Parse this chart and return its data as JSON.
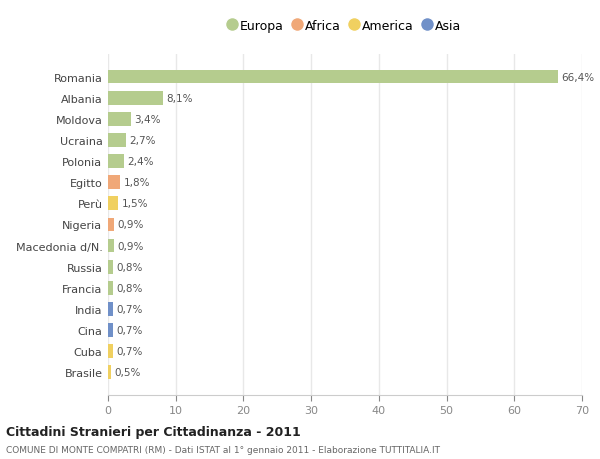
{
  "categories": [
    "Romania",
    "Albania",
    "Moldova",
    "Ucraina",
    "Polonia",
    "Egitto",
    "Perù",
    "Nigeria",
    "Macedonia d/N.",
    "Russia",
    "Francia",
    "India",
    "Cina",
    "Cuba",
    "Brasile"
  ],
  "values": [
    66.4,
    8.1,
    3.4,
    2.7,
    2.4,
    1.8,
    1.5,
    0.9,
    0.9,
    0.8,
    0.8,
    0.7,
    0.7,
    0.7,
    0.5
  ],
  "labels": [
    "66,4%",
    "8,1%",
    "3,4%",
    "2,7%",
    "2,4%",
    "1,8%",
    "1,5%",
    "0,9%",
    "0,9%",
    "0,8%",
    "0,8%",
    "0,7%",
    "0,7%",
    "0,7%",
    "0,5%"
  ],
  "continents": [
    "Europa",
    "Europa",
    "Europa",
    "Europa",
    "Europa",
    "Africa",
    "America",
    "Africa",
    "Europa",
    "Europa",
    "Europa",
    "Asia",
    "Asia",
    "America",
    "America"
  ],
  "colors": {
    "Europa": "#b5cc8e",
    "Africa": "#f0a878",
    "America": "#f0d060",
    "Asia": "#7090c8"
  },
  "legend_order": [
    "Europa",
    "Africa",
    "America",
    "Asia"
  ],
  "title1": "Cittadini Stranieri per Cittadinanza - 2011",
  "title2": "COMUNE DI MONTE COMPATRI (RM) - Dati ISTAT al 1° gennaio 2011 - Elaborazione TUTTITALIA.IT",
  "xlim": [
    0,
    70
  ],
  "xticks": [
    0,
    10,
    20,
    30,
    40,
    50,
    60,
    70
  ],
  "bg_color": "#ffffff",
  "grid_color": "#e8e8e8"
}
